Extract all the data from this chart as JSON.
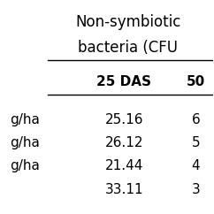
{
  "header_line1": "Non-symbiotic",
  "header_line2": "bacteria (CFU",
  "col_headers": [
    "25 DAS",
    "50"
  ],
  "row_labels": [
    "g/ha",
    "g/ha",
    "g/ha",
    ""
  ],
  "values": [
    [
      "25.16",
      "6"
    ],
    [
      "26.12",
      "5"
    ],
    [
      "21.44",
      "4"
    ],
    [
      "33.11",
      "3"
    ]
  ],
  "bg_color": "#ffffff",
  "text_color": "#000000",
  "font_size": 11,
  "header_font_size": 12
}
